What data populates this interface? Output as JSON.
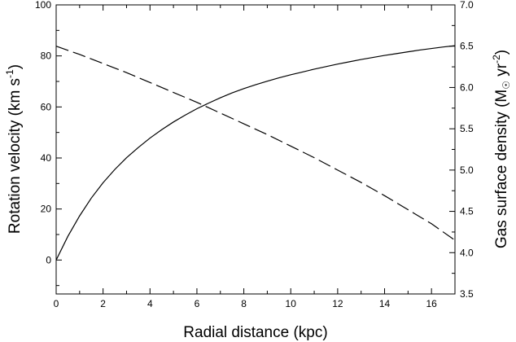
{
  "chart_data": {
    "type": "line",
    "xlabel": "Radial distance (kpc)",
    "ylabel": "Rotation velocity (km s-1)",
    "ylabel_parts": [
      "Rotation velocity (km s",
      "-1",
      ")"
    ],
    "y2label": "Gas surface density (M☉ yr-2)",
    "y2label_parts": [
      "Gas surface density (M",
      "☉",
      " yr",
      "-2",
      ")"
    ],
    "xlim": [
      0,
      17
    ],
    "ylim": [
      -13.3,
      100
    ],
    "y2lim": [
      3.5,
      7.0
    ],
    "xticks": [
      0,
      2,
      4,
      6,
      8,
      10,
      12,
      14,
      16
    ],
    "yticks": [
      0,
      20,
      40,
      60,
      80,
      100
    ],
    "y2ticks": [
      "3.5",
      "4.0",
      "4.5",
      "5.0",
      "5.5",
      "6.0",
      "6.5",
      "7.0"
    ],
    "grid": false,
    "series": [
      {
        "axis": "left",
        "style": "solid",
        "x": [
          0,
          0.5,
          1,
          1.5,
          2,
          2.5,
          3,
          3.5,
          4,
          4.5,
          5,
          5.5,
          6,
          6.5,
          7,
          7.5,
          8,
          8.5,
          9,
          9.5,
          10,
          10.5,
          11,
          11.5,
          12,
          12.5,
          13,
          13.5,
          14,
          14.5,
          15,
          15.5,
          16,
          16.5,
          17
        ],
        "values": [
          0,
          9.3,
          17.3,
          24.3,
          30.3,
          35.5,
          40.1,
          44.1,
          47.8,
          51.1,
          54.1,
          56.8,
          59.3,
          61.5,
          63.6,
          65.5,
          67.2,
          68.7,
          70.1,
          71.4,
          72.6,
          73.7,
          74.8,
          75.8,
          76.8,
          77.7,
          78.6,
          79.4,
          80.2,
          80.9,
          81.6,
          82.3,
          82.9,
          83.5,
          84.0
        ]
      },
      {
        "axis": "right",
        "style": "dashed",
        "x": [
          0,
          1,
          2,
          3,
          4,
          5,
          6,
          7,
          8,
          9,
          10,
          11,
          12,
          13,
          14,
          15,
          16,
          17
        ],
        "values": [
          6.5,
          6.4,
          6.29,
          6.18,
          6.06,
          5.94,
          5.82,
          5.69,
          5.56,
          5.43,
          5.29,
          5.15,
          5.0,
          4.85,
          4.69,
          4.52,
          4.35,
          4.15
        ]
      }
    ]
  }
}
